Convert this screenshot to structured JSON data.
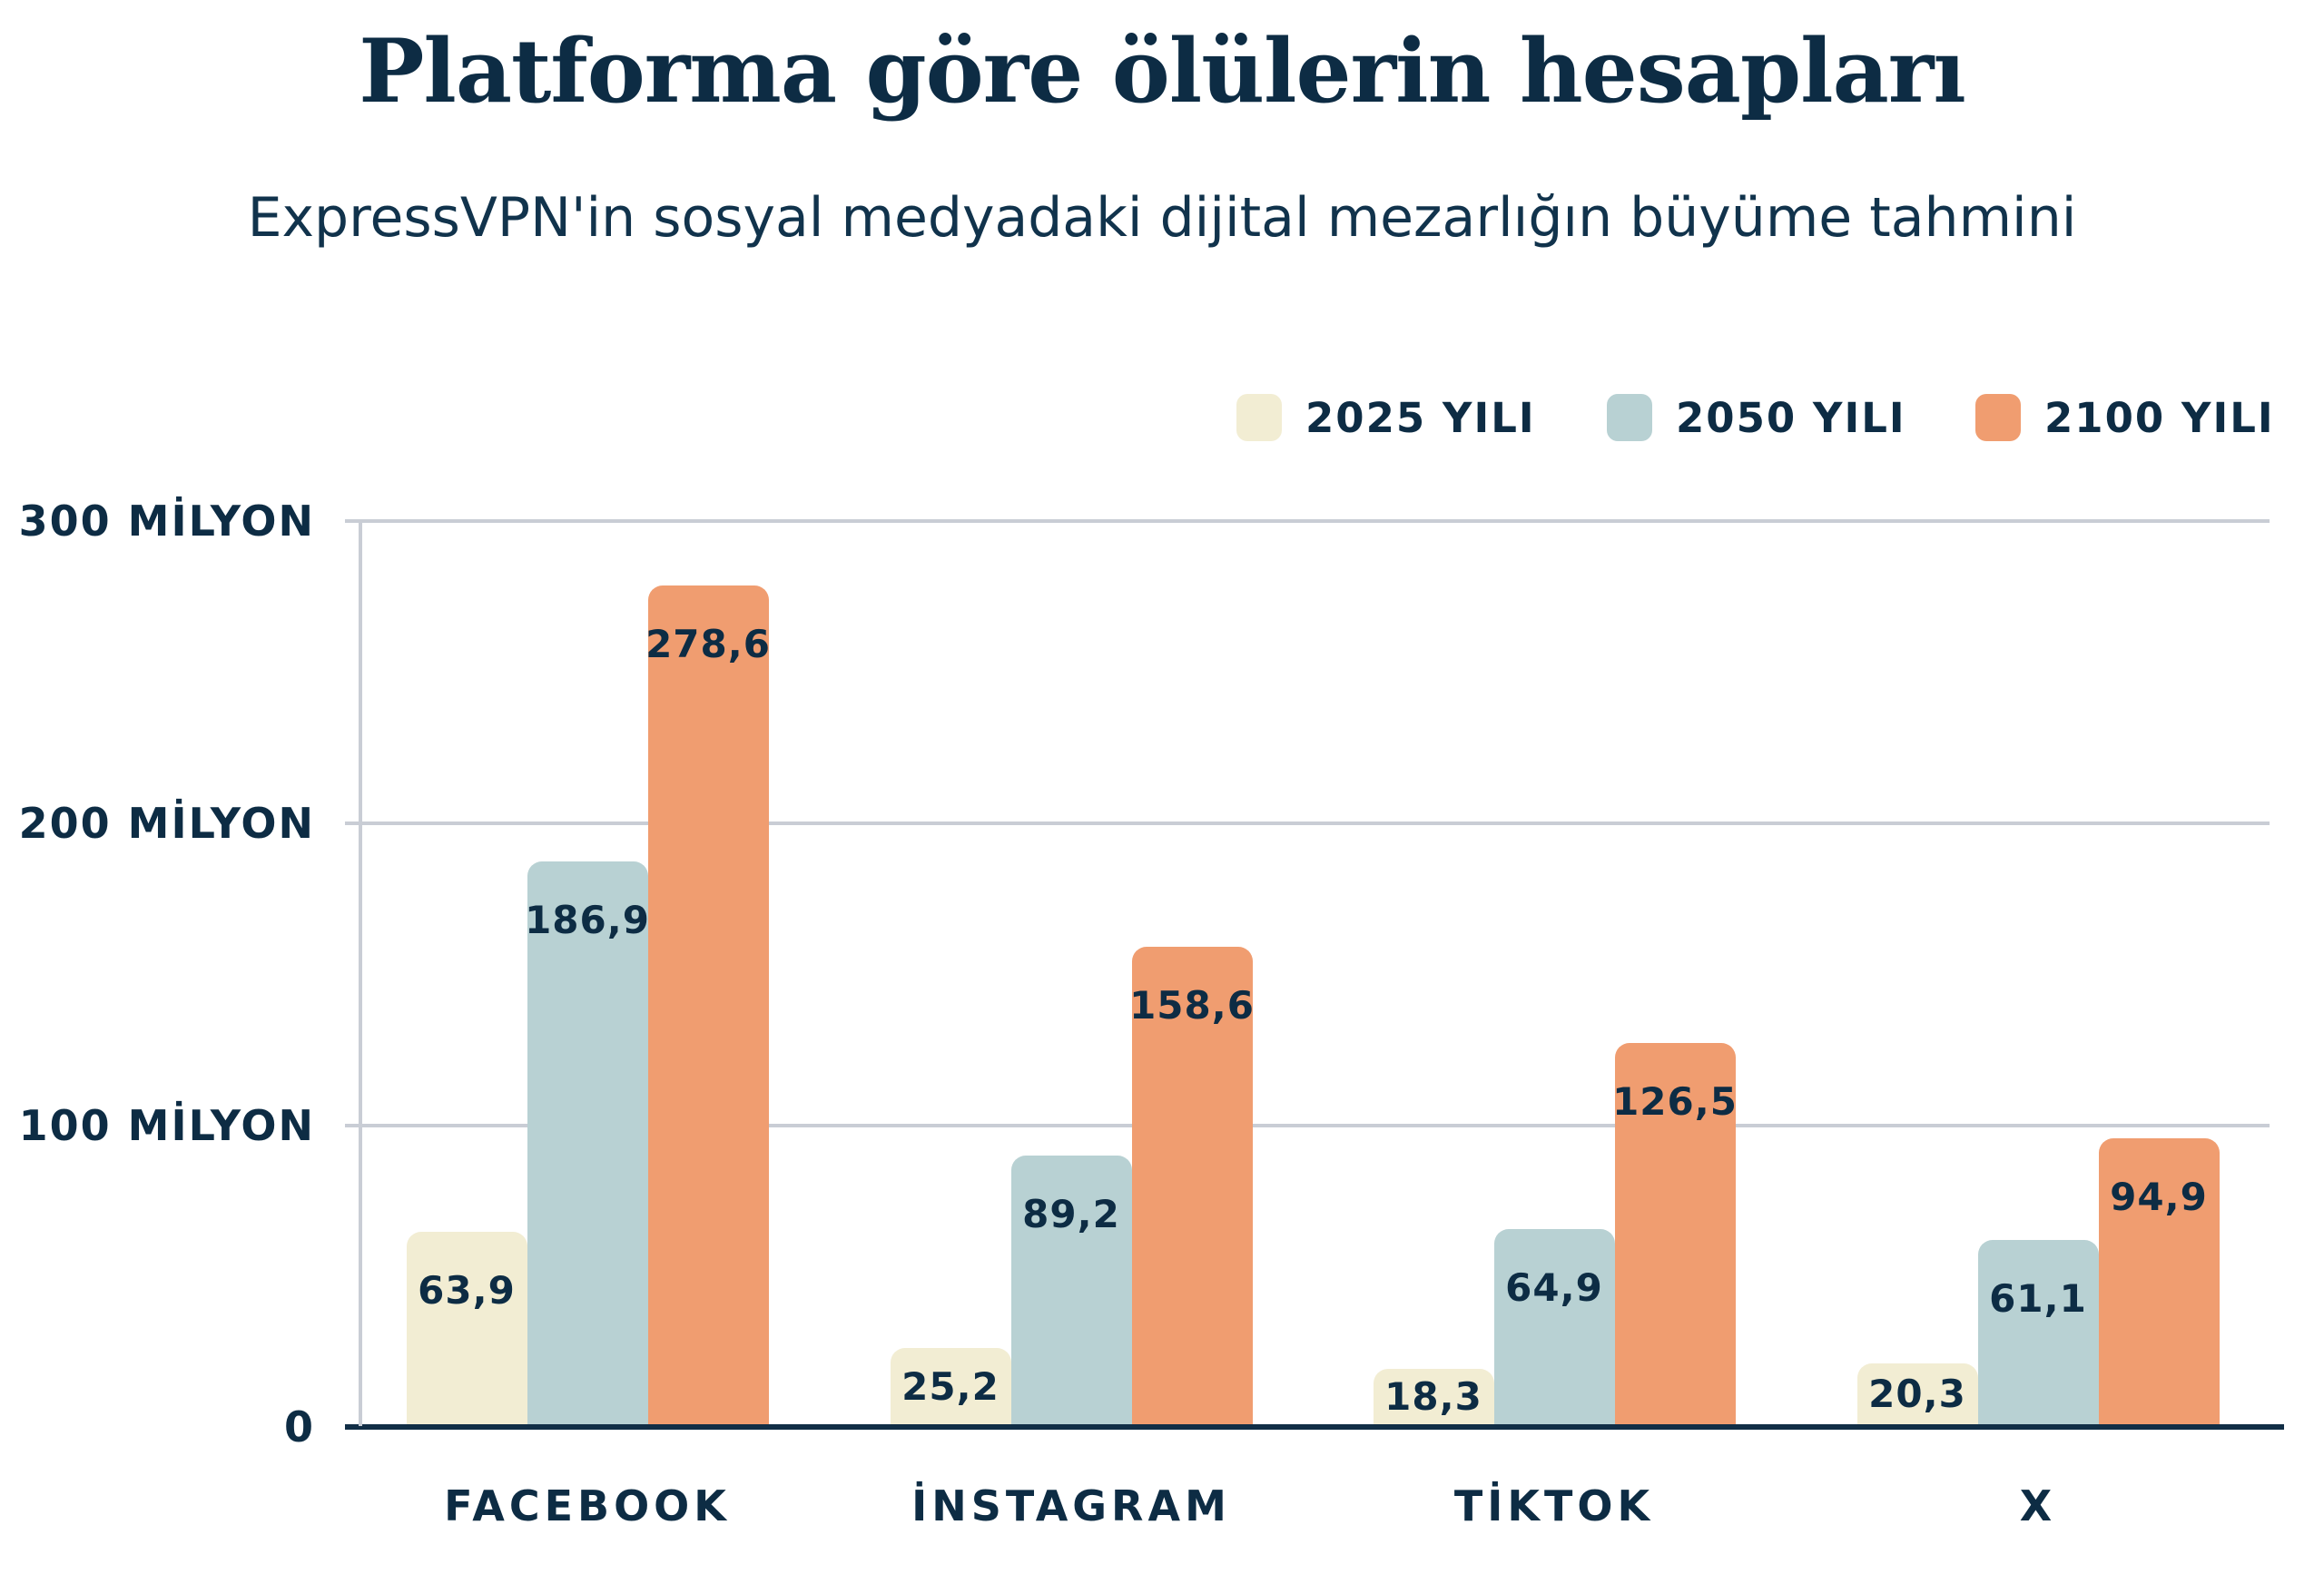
{
  "title": "Platforma göre ölülerin hesapları",
  "subtitle": "ExpressVPN'in sosyal medyadaki dijital mezarlığın büyüme tahmini",
  "colors": {
    "navy_text": "#0d2c44",
    "gridline": "#c9cdd5",
    "baseline": "#112e46",
    "series_2025": "#f2edd3",
    "series_2050": "#b8d1d3",
    "series_2100": "#f09d70",
    "background": "#ffffff"
  },
  "legend": {
    "items": [
      {
        "label": "2025 YILI",
        "color": "#f2edd3"
      },
      {
        "label": "2050 YILI",
        "color": "#b8d1d3"
      },
      {
        "label": "2100 YILI",
        "color": "#f09d70"
      }
    ]
  },
  "chart_data": {
    "type": "bar",
    "title": "Platforma göre ölülerin hesapları",
    "subtitle": "ExpressVPN'in sosyal medyadaki dijital mezarlığın büyüme tahmini",
    "categories": [
      "FACEBOOK",
      "İNSTAGRAM",
      "TİKTOK",
      "X"
    ],
    "series": [
      {
        "name": "2025 YILI",
        "color": "#f2edd3",
        "values": [
          63.9,
          25.2,
          18.3,
          20.3
        ]
      },
      {
        "name": "2050 YILI",
        "color": "#b8d1d3",
        "values": [
          186.9,
          89.2,
          64.9,
          61.1
        ]
      },
      {
        "name": "2100 YILI",
        "color": "#f09d70",
        "values": [
          278.6,
          158.6,
          126.5,
          94.9
        ]
      }
    ],
    "unit": "milyon",
    "decimal_separator": ",",
    "ylim": [
      0,
      300
    ],
    "y_ticks": [
      {
        "value": 0,
        "label": "0"
      },
      {
        "value": 100,
        "label": "100 MİLYON"
      },
      {
        "value": 200,
        "label": "200 MİLYON"
      },
      {
        "value": 300,
        "label": "300 MİLYON"
      }
    ],
    "grid": true,
    "legend_position": "top-right",
    "value_labels_shown": true
  }
}
